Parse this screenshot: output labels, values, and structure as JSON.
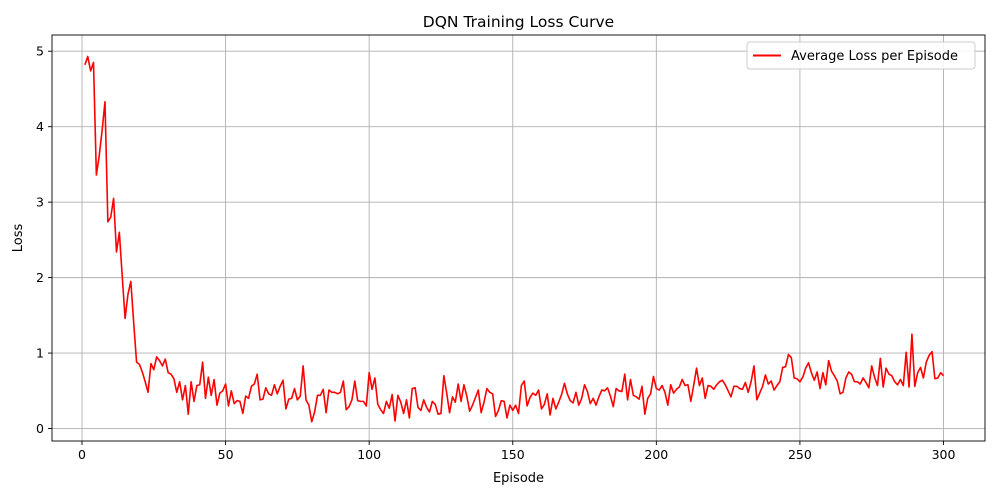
{
  "chart_data": {
    "type": "line",
    "title": "DQN Training Loss Curve",
    "xlabel": "Episode",
    "ylabel": "Loss",
    "xlim": [
      -10.45,
      314.45
    ],
    "ylim": [
      -0.165,
      5.215
    ],
    "xticks": [
      0,
      50,
      100,
      150,
      200,
      250,
      300
    ],
    "yticks": [
      0,
      1,
      2,
      3,
      4,
      5
    ],
    "grid": true,
    "legend_position": "top-right",
    "series": [
      {
        "name": "Average Loss per Episode",
        "color": "#ff0000",
        "x_start": 1,
        "x_step": 1,
        "values": [
          4.82,
          4.93,
          4.74,
          4.85,
          3.36,
          3.62,
          3.95,
          4.33,
          2.74,
          2.8,
          3.05,
          2.34,
          2.6,
          2.02,
          1.46,
          1.78,
          1.95,
          1.4,
          0.88,
          0.85,
          0.75,
          0.62,
          0.48,
          0.86,
          0.78,
          0.95,
          0.9,
          0.83,
          0.92,
          0.74,
          0.72,
          0.66,
          0.48,
          0.62,
          0.38,
          0.57,
          0.19,
          0.62,
          0.36,
          0.57,
          0.58,
          0.88,
          0.4,
          0.68,
          0.44,
          0.65,
          0.31,
          0.47,
          0.5,
          0.59,
          0.3,
          0.5,
          0.33,
          0.37,
          0.36,
          0.2,
          0.43,
          0.4,
          0.56,
          0.59,
          0.72,
          0.38,
          0.39,
          0.54,
          0.46,
          0.44,
          0.58,
          0.46,
          0.56,
          0.64,
          0.26,
          0.39,
          0.4,
          0.53,
          0.38,
          0.43,
          0.83,
          0.38,
          0.31,
          0.09,
          0.22,
          0.44,
          0.44,
          0.52,
          0.21,
          0.51,
          0.48,
          0.48,
          0.46,
          0.48,
          0.63,
          0.25,
          0.29,
          0.38,
          0.63,
          0.37,
          0.36,
          0.36,
          0.3,
          0.74,
          0.52,
          0.67,
          0.32,
          0.25,
          0.2,
          0.36,
          0.27,
          0.45,
          0.1,
          0.44,
          0.35,
          0.2,
          0.38,
          0.14,
          0.53,
          0.54,
          0.28,
          0.24,
          0.38,
          0.28,
          0.22,
          0.36,
          0.32,
          0.19,
          0.2,
          0.7,
          0.47,
          0.21,
          0.42,
          0.35,
          0.59,
          0.36,
          0.58,
          0.43,
          0.23,
          0.31,
          0.41,
          0.51,
          0.21,
          0.35,
          0.53,
          0.48,
          0.46,
          0.16,
          0.24,
          0.37,
          0.36,
          0.14,
          0.31,
          0.24,
          0.31,
          0.2,
          0.57,
          0.63,
          0.3,
          0.41,
          0.47,
          0.44,
          0.51,
          0.26,
          0.32,
          0.46,
          0.18,
          0.4,
          0.26,
          0.35,
          0.45,
          0.6,
          0.46,
          0.37,
          0.34,
          0.48,
          0.31,
          0.4,
          0.58,
          0.49,
          0.33,
          0.4,
          0.31,
          0.42,
          0.51,
          0.5,
          0.54,
          0.43,
          0.29,
          0.53,
          0.5,
          0.49,
          0.72,
          0.38,
          0.65,
          0.44,
          0.42,
          0.39,
          0.56,
          0.19,
          0.4,
          0.46,
          0.69,
          0.53,
          0.51,
          0.57,
          0.48,
          0.31,
          0.58,
          0.47,
          0.52,
          0.55,
          0.65,
          0.57,
          0.58,
          0.36,
          0.57,
          0.8,
          0.57,
          0.67,
          0.4,
          0.57,
          0.56,
          0.52,
          0.58,
          0.62,
          0.64,
          0.58,
          0.5,
          0.42,
          0.56,
          0.56,
          0.53,
          0.52,
          0.61,
          0.48,
          0.62,
          0.83,
          0.38,
          0.47,
          0.56,
          0.71,
          0.59,
          0.63,
          0.51,
          0.57,
          0.62,
          0.81,
          0.82,
          0.98,
          0.94,
          0.67,
          0.66,
          0.62,
          0.68,
          0.8,
          0.87,
          0.74,
          0.64,
          0.75,
          0.53,
          0.74,
          0.58,
          0.9,
          0.76,
          0.7,
          0.63,
          0.46,
          0.48,
          0.67,
          0.75,
          0.72,
          0.62,
          0.62,
          0.59,
          0.67,
          0.61,
          0.54,
          0.83,
          0.68,
          0.57,
          0.93,
          0.55,
          0.8,
          0.72,
          0.7,
          0.62,
          0.58,
          0.65,
          0.57,
          1.01,
          0.55,
          1.25,
          0.56,
          0.74,
          0.81,
          0.67,
          0.88,
          0.97,
          1.02,
          0.66,
          0.67,
          0.74,
          0.7
        ]
      }
    ]
  }
}
